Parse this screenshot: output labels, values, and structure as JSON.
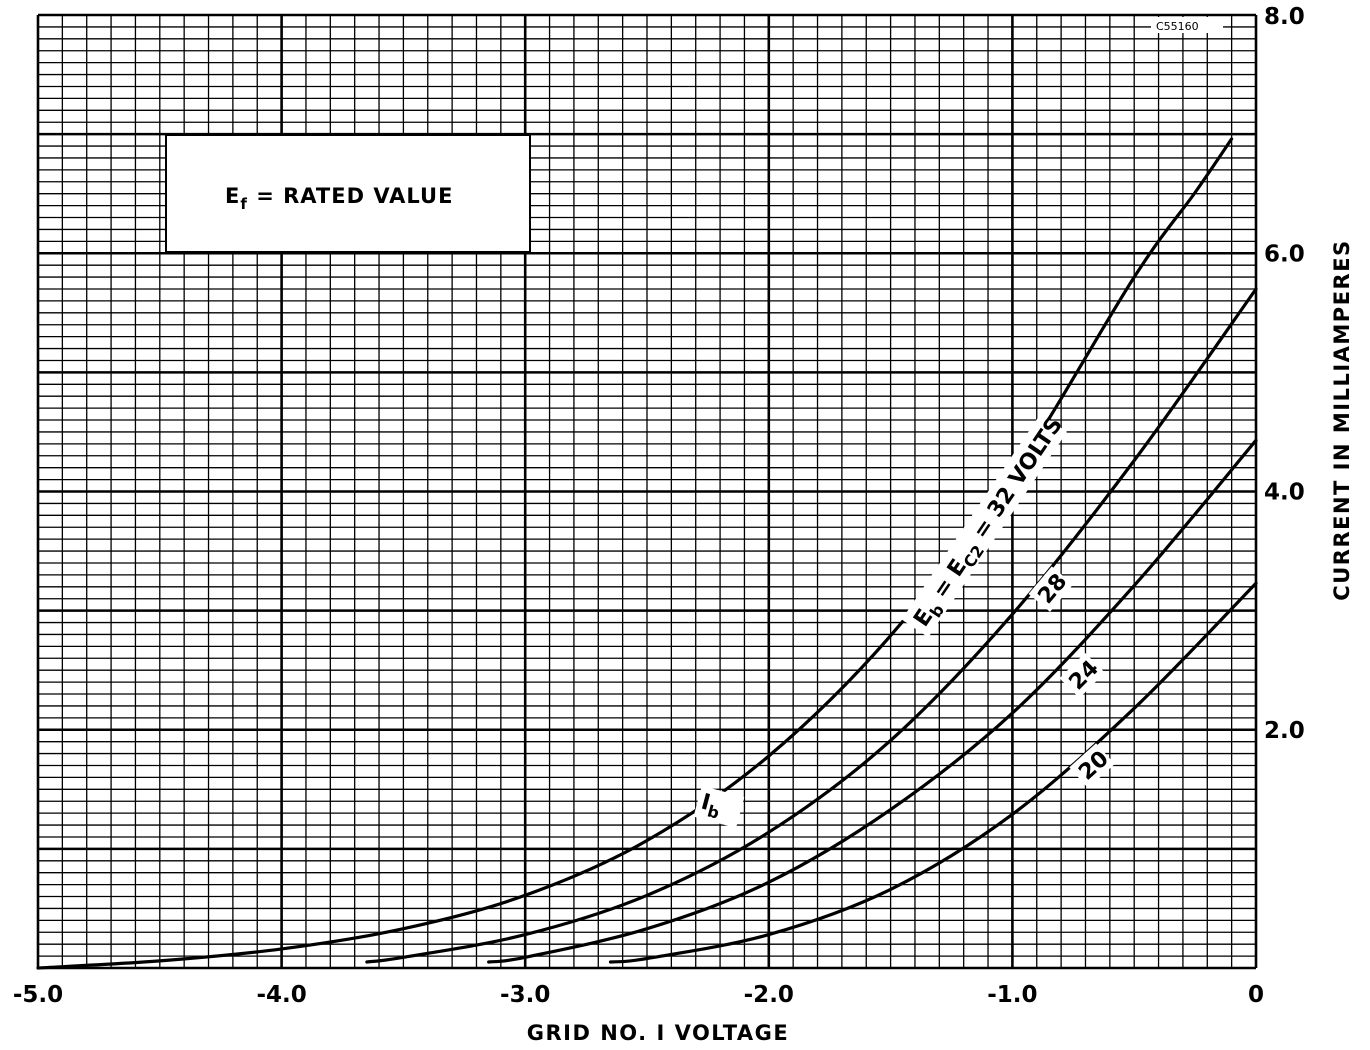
{
  "chart_data": {
    "type": "line",
    "title": "",
    "xlabel": "GRID NO. I VOLTAGE",
    "ylabel": "CURRENT IN MILLIAMPERES",
    "xlim": [
      -5.0,
      0
    ],
    "ylim": [
      0,
      8.0
    ],
    "x_ticks": [
      {
        "value": -5.0,
        "label": "-5.0"
      },
      {
        "value": -4.0,
        "label": "-4.0"
      },
      {
        "value": -3.0,
        "label": "-3.0"
      },
      {
        "value": -2.0,
        "label": "-2.0"
      },
      {
        "value": -1.0,
        "label": "-1.0"
      },
      {
        "value": 0,
        "label": "0"
      }
    ],
    "y_ticks": [
      {
        "value": 2.0,
        "label": "2.0"
      },
      {
        "value": 4.0,
        "label": "4.0"
      },
      {
        "value": 6.0,
        "label": "6.0"
      },
      {
        "value": 8.0,
        "label": "8.0"
      }
    ],
    "y_axis_position": "right",
    "grid": true,
    "note": {
      "main": "E",
      "sub": "f",
      "rest": " = RATED VALUE"
    },
    "drawing_code": "C55160",
    "series": [
      {
        "name": "32",
        "x": [
          -5.0,
          -4.5,
          -4.0,
          -3.5,
          -3.0,
          -2.5,
          -2.0,
          -1.5,
          -1.0,
          -0.5,
          -0.25,
          -0.1
        ],
        "y": [
          0.0,
          0.06,
          0.16,
          0.33,
          0.61,
          1.07,
          1.78,
          2.79,
          4.13,
          5.8,
          6.51,
          6.96
        ]
      },
      {
        "name": "28",
        "x": [
          -3.65,
          -3.5,
          -3.0,
          -2.5,
          -2.0,
          -1.5,
          -1.0,
          -0.5,
          0
        ],
        "y": [
          0.05,
          0.09,
          0.28,
          0.61,
          1.14,
          1.91,
          2.97,
          4.26,
          5.7
        ]
      },
      {
        "name": "24",
        "x": [
          -3.15,
          -3.0,
          -2.5,
          -2.0,
          -1.5,
          -1.0,
          -0.5,
          0
        ],
        "y": [
          0.05,
          0.09,
          0.33,
          0.72,
          1.33,
          2.14,
          3.21,
          4.43
        ]
      },
      {
        "name": "20",
        "x": [
          -2.65,
          -2.5,
          -2.0,
          -1.5,
          -1.0,
          -0.5,
          0
        ],
        "y": [
          0.05,
          0.08,
          0.28,
          0.66,
          1.29,
          2.18,
          3.23
        ]
      }
    ],
    "curve_labels": [
      {
        "series": "32",
        "main": "E",
        "sub": "b",
        "mid": " = E",
        "sub2": "C2",
        "rest": " = 32 VOLTS"
      },
      {
        "series": "32",
        "main": "I",
        "sub": "b"
      },
      {
        "series": "28",
        "text": "28"
      },
      {
        "series": "24",
        "text": "24"
      },
      {
        "series": "20",
        "text": "20"
      }
    ]
  }
}
